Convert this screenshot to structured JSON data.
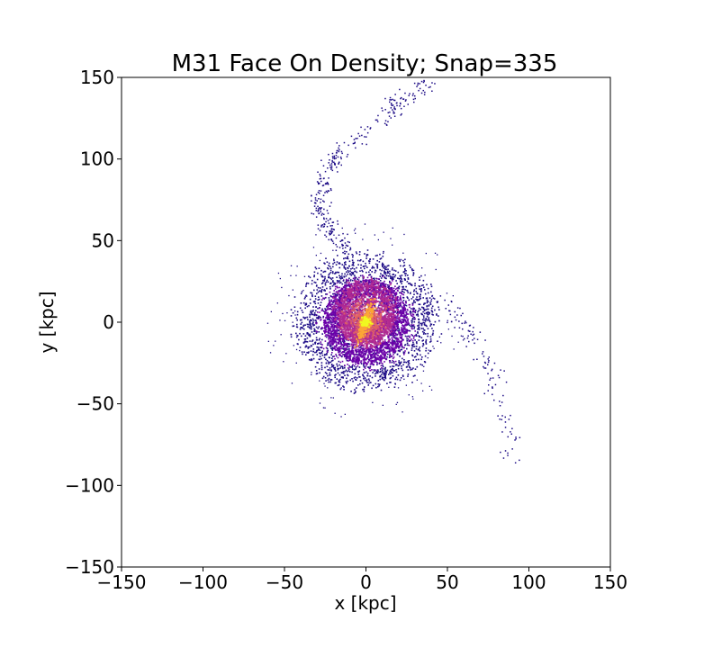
{
  "chart_data": {
    "type": "heatmap",
    "title": "M31 Face On Density; Snap=335",
    "xlabel": "x [kpc]",
    "ylabel": "y [kpc]",
    "xlim": [
      -150,
      150
    ],
    "ylim": [
      -150,
      150
    ],
    "xticks": [
      -150,
      -100,
      -50,
      0,
      50,
      100,
      150
    ],
    "yticks": [
      -150,
      -100,
      -50,
      0,
      50,
      100,
      150
    ],
    "xtick_labels": [
      "−150",
      "−100",
      "−50",
      "0",
      "50",
      "100",
      "150"
    ],
    "ytick_labels": [
      "−150",
      "−100",
      "−50",
      "0",
      "50",
      "100",
      "150"
    ],
    "grid": false,
    "colormap": "plasma",
    "colors": {
      "low": "#1d0c86",
      "mid_low": "#6a00a8",
      "mid": "#b12a90",
      "mid_high": "#e16462",
      "high": "#fca636",
      "peak": "#f0f921"
    },
    "features": {
      "disk": {
        "center": [
          0,
          0
        ],
        "radius": 40
      },
      "bar": {
        "center": [
          0,
          0
        ],
        "length": 14,
        "angle_deg": 70
      },
      "tidal_arm_north": [
        [
          -10,
          40
        ],
        [
          -20,
          55
        ],
        [
          -30,
          70
        ],
        [
          -25,
          90
        ],
        [
          -15,
          105
        ],
        [
          10,
          125
        ],
        [
          20,
          135
        ],
        [
          40,
          148
        ]
      ],
      "tidal_arm_south": [
        [
          40,
          20
        ],
        [
          55,
          5
        ],
        [
          65,
          -10
        ],
        [
          75,
          -25
        ],
        [
          80,
          -40
        ],
        [
          85,
          -60
        ],
        [
          90,
          -85
        ]
      ]
    }
  }
}
